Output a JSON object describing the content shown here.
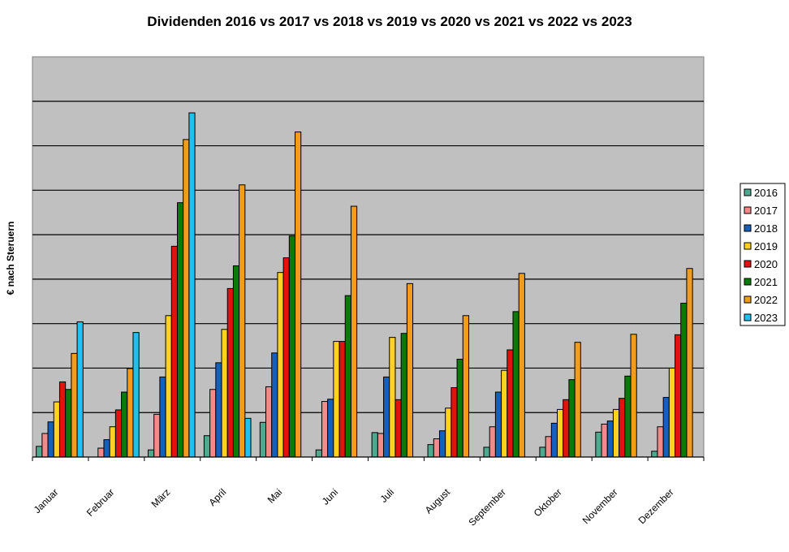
{
  "chart_data": {
    "type": "bar",
    "title": "Dividenden 2016 vs 2017 vs 2018 vs 2019 vs 2020 vs 2021 vs 2022 vs 2023",
    "xlabel": "",
    "ylabel": "€ nach Steruern",
    "ylim": [
      0,
      9
    ],
    "y_tick_labels_shown": false,
    "grid": true,
    "legend_position": "right",
    "categories": [
      "Januar",
      "Februar",
      "März",
      "April",
      "Mai",
      "Juni",
      "Juli",
      "August",
      "September",
      "Oktober",
      "November",
      "Dezember"
    ],
    "series": [
      {
        "name": "2016",
        "color": "#4fa98f",
        "values": [
          0.24,
          0,
          0.16,
          0.48,
          0.78,
          0.16,
          0.55,
          0.28,
          0.22,
          0.22,
          0.56,
          0.13
        ]
      },
      {
        "name": "2017",
        "color": "#f28a8a",
        "values": [
          0.53,
          0.2,
          0.96,
          1.52,
          1.58,
          1.25,
          0.53,
          0.41,
          0.68,
          0.46,
          0.74,
          0.68
        ]
      },
      {
        "name": "2018",
        "color": "#1560bd",
        "values": [
          0.79,
          0.39,
          1.8,
          2.12,
          2.34,
          1.3,
          1.8,
          0.59,
          1.46,
          0.76,
          0.81,
          1.34
        ]
      },
      {
        "name": "2019",
        "color": "#ffd21f",
        "values": [
          1.24,
          0.68,
          3.18,
          2.87,
          4.15,
          2.6,
          2.69,
          1.1,
          1.95,
          1.07,
          1.07,
          2.0
        ]
      },
      {
        "name": "2020",
        "color": "#e3120f",
        "values": [
          1.69,
          1.06,
          4.74,
          3.79,
          4.48,
          2.6,
          1.29,
          1.56,
          2.41,
          1.29,
          1.32,
          2.75
        ]
      },
      {
        "name": "2021",
        "color": "#0b7a0b",
        "values": [
          1.52,
          1.46,
          5.72,
          4.3,
          4.97,
          3.63,
          2.78,
          2.2,
          3.27,
          1.74,
          1.82,
          3.46
        ]
      },
      {
        "name": "2022",
        "color": "#f59b1b",
        "values": [
          2.33,
          1.99,
          7.14,
          6.12,
          7.31,
          5.64,
          3.9,
          3.18,
          4.13,
          2.58,
          2.76,
          4.24
        ]
      },
      {
        "name": "2023",
        "color": "#1ec2f0",
        "values": [
          3.04,
          2.8,
          7.74,
          0.87,
          0,
          0,
          0,
          0,
          0,
          0,
          0,
          0
        ]
      }
    ],
    "colors": {
      "plot_background": "#c0c0c0",
      "gridline": "#000000"
    }
  }
}
